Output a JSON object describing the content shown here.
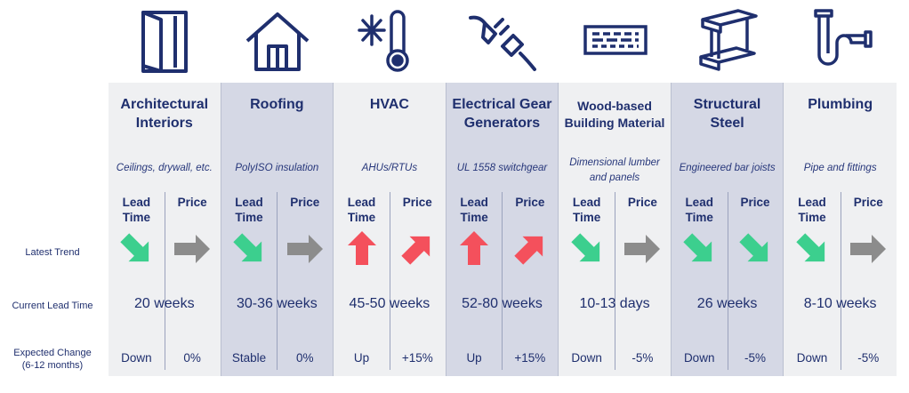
{
  "row_labels": {
    "latest_trend": "Latest Trend",
    "current_lead_time": "Current Lead Time",
    "expected_change_line1": "Expected Change",
    "expected_change_line2": "(6-12 months)"
  },
  "column_headers": {
    "lead_line1": "Lead",
    "lead_line2": "Time",
    "price": "Price"
  },
  "colors": {
    "navy": "#1f2f6e",
    "green_down": "#3ccf8e",
    "gray_flat": "#8c8c8c",
    "red_up": "#f4505c"
  },
  "categories": [
    {
      "title_line1": "Architectural",
      "title_line2": "Interiors",
      "subtitle_line1": "Ceilings, drywall, etc.",
      "subtitle_line2": "",
      "icon": "folding-door-icon",
      "lead_trend": "down",
      "price_trend": "flat",
      "current_lead_time": "20 weeks",
      "lead_change": "Down",
      "price_change": "0%"
    },
    {
      "title_line1": "Roofing",
      "title_line2": "",
      "subtitle_line1": "PolyISO insulation",
      "subtitle_line2": "",
      "icon": "house-icon",
      "lead_trend": "down",
      "price_trend": "flat",
      "current_lead_time": "30-36 weeks",
      "lead_change": "Stable",
      "price_change": "0%"
    },
    {
      "title_line1": "HVAC",
      "title_line2": "",
      "subtitle_line1": "AHUs/RTUs",
      "subtitle_line2": "",
      "icon": "snowflake-thermometer-icon",
      "lead_trend": "up",
      "price_trend": "up",
      "current_lead_time": "45-50 weeks",
      "lead_change": "Up",
      "price_change": "+15%"
    },
    {
      "title_line1": "Electrical Gear",
      "title_line2": "Generators",
      "subtitle_line1": "UL 1558 switchgear",
      "subtitle_line2": "",
      "icon": "plug-icon",
      "lead_trend": "up",
      "price_trend": "up",
      "current_lead_time": "52-80 weeks",
      "lead_change": "Up",
      "price_change": "+15%"
    },
    {
      "title_line1": "Wood-based",
      "title_line2": "Building Material",
      "subtitle_line1": "Dimensional lumber",
      "subtitle_line2": "and panels",
      "icon": "wood-panel-icon",
      "lead_trend": "down",
      "price_trend": "flat",
      "current_lead_time": "10-13 days",
      "lead_change": "Down",
      "price_change": "-5%"
    },
    {
      "title_line1": "Structural",
      "title_line2": "Steel",
      "subtitle_line1": "Engineered bar joists",
      "subtitle_line2": "",
      "icon": "steel-beam-icon",
      "lead_trend": "down",
      "price_trend": "down",
      "current_lead_time": "26 weeks",
      "lead_change": "Down",
      "price_change": "-5%"
    },
    {
      "title_line1": "Plumbing",
      "title_line2": "",
      "subtitle_line1": "Pipe and fittings",
      "subtitle_line2": "",
      "icon": "pipe-icon",
      "lead_trend": "down",
      "price_trend": "flat",
      "current_lead_time": "8-10 weeks",
      "lead_change": "Down",
      "price_change": "-5%"
    }
  ]
}
